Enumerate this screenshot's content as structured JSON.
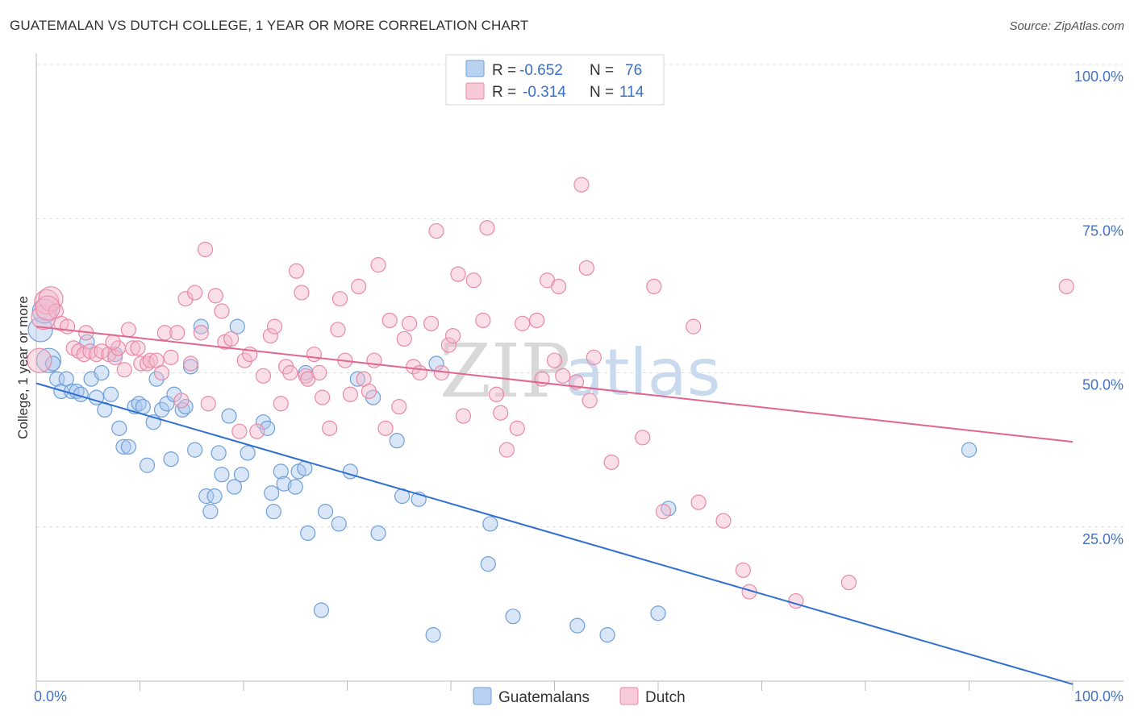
{
  "title": "GUATEMALAN VS DUTCH COLLEGE, 1 YEAR OR MORE CORRELATION CHART",
  "source": "Source: ZipAtlas.com",
  "watermark": {
    "left": "ZIP",
    "right": "atlas"
  },
  "legend_box": {
    "rows": [
      {
        "r_label": "R = ",
        "r_value": "-0.652",
        "n_label": "N = ",
        "n_value": "76"
      },
      {
        "r_label": "R = ",
        "r_value": "-0.314",
        "n_label": "N = ",
        "n_value": "114"
      }
    ]
  },
  "colors": {
    "blue_fill": "#a9c7ef",
    "blue_stroke": "#6f9fd8",
    "blue_line": "#2f6fd0",
    "pink_fill": "#f5b9cb",
    "pink_stroke": "#e889a6",
    "pink_line": "#e06690"
  },
  "chart_data": {
    "type": "scatter",
    "xlabel": "",
    "ylabel": "College, 1 year or more",
    "x_tick_labels": [
      "0.0%",
      "100.0%"
    ],
    "y_tick_labels": [
      "100.0%",
      "75.0%",
      "50.0%",
      "25.0%"
    ],
    "y_tick_values": [
      100,
      75,
      50,
      25
    ],
    "xlim": [
      0,
      100
    ],
    "ylim": [
      0,
      100
    ],
    "grid": true,
    "legend_position": "bottom",
    "series": [
      {
        "name": "Guatemalans",
        "trend": {
          "x": [
            0,
            100
          ],
          "y": [
            48.3,
            -0.5
          ]
        },
        "points": [
          [
            0.4,
            57
          ],
          [
            0.8,
            60
          ],
          [
            1.2,
            52
          ],
          [
            1.6,
            51.5
          ],
          [
            2.0,
            49
          ],
          [
            2.4,
            47
          ],
          [
            2.9,
            49
          ],
          [
            3.4,
            47
          ],
          [
            3.9,
            47
          ],
          [
            4.3,
            46.5
          ],
          [
            4.9,
            55
          ],
          [
            5.3,
            49
          ],
          [
            5.8,
            46
          ],
          [
            6.3,
            50
          ],
          [
            6.6,
            44
          ],
          [
            7.2,
            46.5
          ],
          [
            7.6,
            53
          ],
          [
            8.0,
            41
          ],
          [
            8.4,
            38
          ],
          [
            8.9,
            38
          ],
          [
            9.5,
            44.5
          ],
          [
            9.9,
            45
          ],
          [
            10.3,
            44.5
          ],
          [
            10.7,
            35
          ],
          [
            11.3,
            42
          ],
          [
            11.6,
            49
          ],
          [
            12.1,
            44
          ],
          [
            12.6,
            45
          ],
          [
            13.0,
            36
          ],
          [
            13.3,
            46.5
          ],
          [
            14.1,
            44
          ],
          [
            14.4,
            44.5
          ],
          [
            14.9,
            51
          ],
          [
            15.3,
            37.5
          ],
          [
            15.9,
            57.5
          ],
          [
            16.4,
            30
          ],
          [
            16.8,
            27.5
          ],
          [
            17.2,
            30
          ],
          [
            17.6,
            37
          ],
          [
            17.9,
            33.5
          ],
          [
            18.6,
            43
          ],
          [
            19.1,
            31.5
          ],
          [
            19.4,
            57.5
          ],
          [
            19.8,
            33.5
          ],
          [
            20.4,
            37
          ],
          [
            21.9,
            42
          ],
          [
            22.3,
            41
          ],
          [
            22.7,
            30.5
          ],
          [
            22.9,
            27.5
          ],
          [
            23.6,
            34
          ],
          [
            23.9,
            32
          ],
          [
            25.0,
            31.5
          ],
          [
            25.3,
            34
          ],
          [
            25.9,
            34.5
          ],
          [
            26.0,
            50
          ],
          [
            26.2,
            24
          ],
          [
            27.5,
            11.5
          ],
          [
            27.9,
            27.5
          ],
          [
            29.2,
            25.5
          ],
          [
            30.3,
            34
          ],
          [
            31.0,
            49
          ],
          [
            32.5,
            46
          ],
          [
            33.0,
            24
          ],
          [
            34.8,
            39
          ],
          [
            35.3,
            30
          ],
          [
            36.9,
            29.5
          ],
          [
            38.3,
            7.5
          ],
          [
            38.6,
            51.5
          ],
          [
            43.6,
            19
          ],
          [
            43.8,
            25.5
          ],
          [
            46.0,
            10.5
          ],
          [
            52.2,
            9
          ],
          [
            55.1,
            7.5
          ],
          [
            60.0,
            11
          ],
          [
            61.0,
            28
          ],
          [
            90.0,
            37.5
          ]
        ]
      },
      {
        "name": "Dutch",
        "trend": {
          "x": [
            0,
            100
          ],
          "y": [
            57.5,
            38.8
          ]
        },
        "points": [
          [
            0.3,
            52
          ],
          [
            0.7,
            59
          ],
          [
            1.0,
            61.5
          ],
          [
            1.4,
            62
          ],
          [
            1.9,
            60
          ],
          [
            2.4,
            58
          ],
          [
            3.0,
            57.5
          ],
          [
            3.6,
            54
          ],
          [
            4.1,
            53.5
          ],
          [
            4.6,
            53
          ],
          [
            5.2,
            53.5
          ],
          [
            5.8,
            53
          ],
          [
            6.3,
            53.5
          ],
          [
            7.0,
            53
          ],
          [
            7.6,
            52.5
          ],
          [
            7.9,
            54
          ],
          [
            8.5,
            50.5
          ],
          [
            8.9,
            57
          ],
          [
            9.3,
            54
          ],
          [
            9.8,
            54
          ],
          [
            10.1,
            51.5
          ],
          [
            10.7,
            51.5
          ],
          [
            11.0,
            52
          ],
          [
            11.6,
            52
          ],
          [
            12.1,
            50
          ],
          [
            12.4,
            56.5
          ],
          [
            13.0,
            52.5
          ],
          [
            13.6,
            56.5
          ],
          [
            14.0,
            45.5
          ],
          [
            14.4,
            62
          ],
          [
            14.9,
            51.5
          ],
          [
            15.3,
            63
          ],
          [
            15.9,
            56.5
          ],
          [
            16.3,
            70
          ],
          [
            16.6,
            45
          ],
          [
            17.3,
            62.5
          ],
          [
            17.9,
            60
          ],
          [
            18.2,
            55
          ],
          [
            18.8,
            55.5
          ],
          [
            19.6,
            40.5
          ],
          [
            20.1,
            52
          ],
          [
            20.6,
            53
          ],
          [
            21.3,
            40.5
          ],
          [
            21.9,
            49.5
          ],
          [
            22.6,
            56
          ],
          [
            23.0,
            57.5
          ],
          [
            23.6,
            45
          ],
          [
            24.1,
            51
          ],
          [
            24.5,
            50
          ],
          [
            25.1,
            66.5
          ],
          [
            25.6,
            63
          ],
          [
            26.0,
            49.5
          ],
          [
            26.2,
            49
          ],
          [
            26.8,
            53
          ],
          [
            27.3,
            50
          ],
          [
            27.6,
            46
          ],
          [
            28.3,
            41
          ],
          [
            29.1,
            57
          ],
          [
            29.3,
            62
          ],
          [
            29.8,
            52
          ],
          [
            30.3,
            46.5
          ],
          [
            31.1,
            64
          ],
          [
            31.6,
            49
          ],
          [
            32.1,
            47
          ],
          [
            32.6,
            52
          ],
          [
            33.0,
            67.5
          ],
          [
            33.7,
            41
          ],
          [
            34.1,
            58.5
          ],
          [
            35.0,
            44.5
          ],
          [
            35.5,
            55.5
          ],
          [
            36.0,
            58
          ],
          [
            36.4,
            51
          ],
          [
            37.0,
            50
          ],
          [
            38.1,
            58
          ],
          [
            38.6,
            73
          ],
          [
            39.1,
            50
          ],
          [
            39.8,
            54.5
          ],
          [
            40.2,
            56
          ],
          [
            40.7,
            66
          ],
          [
            41.2,
            43
          ],
          [
            42.2,
            65
          ],
          [
            43.1,
            58.5
          ],
          [
            43.5,
            73.5
          ],
          [
            44.4,
            46.5
          ],
          [
            44.8,
            43.5
          ],
          [
            45.4,
            37.5
          ],
          [
            46.4,
            41
          ],
          [
            46.9,
            58
          ],
          [
            48.3,
            58.5
          ],
          [
            48.8,
            49
          ],
          [
            49.3,
            65
          ],
          [
            50.0,
            52
          ],
          [
            50.4,
            64
          ],
          [
            50.8,
            49.5
          ],
          [
            52.1,
            48.5
          ],
          [
            52.6,
            80.5
          ],
          [
            53.1,
            67
          ],
          [
            53.4,
            45.5
          ],
          [
            53.8,
            52.5
          ],
          [
            55.5,
            35.5
          ],
          [
            58.5,
            39.5
          ],
          [
            59.6,
            64
          ],
          [
            60.5,
            27.5
          ],
          [
            63.4,
            57.5
          ],
          [
            63.9,
            29
          ],
          [
            66.3,
            26
          ],
          [
            68.2,
            18
          ],
          [
            68.8,
            14.5
          ],
          [
            73.3,
            13
          ],
          [
            78.4,
            16
          ],
          [
            1.1,
            60.5
          ],
          [
            4.8,
            56.5
          ],
          [
            7.4,
            55
          ],
          [
            99.4,
            64
          ]
        ]
      }
    ]
  },
  "bottom_legend": [
    {
      "label": "Guatemalans"
    },
    {
      "label": "Dutch"
    }
  ]
}
